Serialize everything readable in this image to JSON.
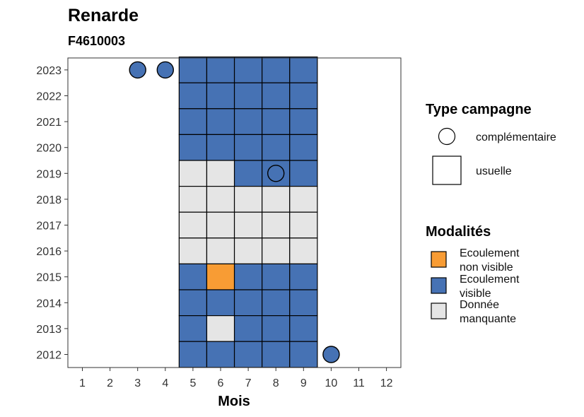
{
  "chart_data": {
    "type": "heatmap",
    "title": "Renarde",
    "subtitle": "F4610003",
    "xlabel": "Mois",
    "x_ticks": [
      "1",
      "2",
      "3",
      "4",
      "5",
      "6",
      "7",
      "8",
      "9",
      "10",
      "11",
      "12"
    ],
    "y_ticks": [
      "2012",
      "2013",
      "2014",
      "2015",
      "2016",
      "2017",
      "2018",
      "2019",
      "2020",
      "2021",
      "2022",
      "2023"
    ],
    "colors": {
      "Ecoulement non visible": "#F89C34",
      "Ecoulement visible": "#4672B4",
      "Donnée manquante": "#E5E5E5",
      "tile_border": "#000000",
      "panel_border": "#333333"
    },
    "usuelle_tiles": [
      {
        "year": 2023,
        "months": [
          "Ecoulement visible",
          "Ecoulement visible",
          "Ecoulement visible",
          "Ecoulement visible",
          "Ecoulement visible"
        ]
      },
      {
        "year": 2022,
        "months": [
          "Ecoulement visible",
          "Ecoulement visible",
          "Ecoulement visible",
          "Ecoulement visible",
          "Ecoulement visible"
        ]
      },
      {
        "year": 2021,
        "months": [
          "Ecoulement visible",
          "Ecoulement visible",
          "Ecoulement visible",
          "Ecoulement visible",
          "Ecoulement visible"
        ]
      },
      {
        "year": 2020,
        "months": [
          "Ecoulement visible",
          "Ecoulement visible",
          "Ecoulement visible",
          "Ecoulement visible",
          "Ecoulement visible"
        ]
      },
      {
        "year": 2019,
        "months": [
          "Donnée manquante",
          "Donnée manquante",
          "Ecoulement visible",
          "Ecoulement visible",
          "Ecoulement visible"
        ]
      },
      {
        "year": 2018,
        "months": [
          "Donnée manquante",
          "Donnée manquante",
          "Donnée manquante",
          "Donnée manquante",
          "Donnée manquante"
        ]
      },
      {
        "year": 2017,
        "months": [
          "Donnée manquante",
          "Donnée manquante",
          "Donnée manquante",
          "Donnée manquante",
          "Donnée manquante"
        ]
      },
      {
        "year": 2016,
        "months": [
          "Donnée manquante",
          "Donnée manquante",
          "Donnée manquante",
          "Donnée manquante",
          "Donnée manquante"
        ]
      },
      {
        "year": 2015,
        "months": [
          "Ecoulement visible",
          "Ecoulement non visible",
          "Ecoulement visible",
          "Ecoulement visible",
          "Ecoulement visible"
        ]
      },
      {
        "year": 2014,
        "months": [
          "Ecoulement visible",
          "Ecoulement visible",
          "Ecoulement visible",
          "Ecoulement visible",
          "Ecoulement visible"
        ]
      },
      {
        "year": 2013,
        "months": [
          "Ecoulement visible",
          "Donnée manquante",
          "Ecoulement visible",
          "Ecoulement visible",
          "Ecoulement visible"
        ]
      },
      {
        "year": 2012,
        "months": [
          "Ecoulement visible",
          "Ecoulement visible",
          "Ecoulement visible",
          "Ecoulement visible",
          "Ecoulement visible"
        ]
      }
    ],
    "usuelle_months": [
      5,
      6,
      7,
      8,
      9
    ],
    "complementaire_points": [
      {
        "year": 2023,
        "month": 3,
        "modalite": "Ecoulement visible"
      },
      {
        "year": 2023,
        "month": 4,
        "modalite": "Ecoulement visible"
      },
      {
        "year": 2019,
        "month": 8,
        "modalite": "Ecoulement visible"
      },
      {
        "year": 2012,
        "month": 10,
        "modalite": "Ecoulement visible"
      }
    ],
    "legend_shape": {
      "title": "Type campagne",
      "items": [
        {
          "shape": "circle",
          "label": "complémentaire"
        },
        {
          "shape": "square",
          "label": "usuelle"
        }
      ]
    },
    "legend_fill": {
      "title": "Modalités",
      "items": [
        {
          "key": "Ecoulement non visible",
          "label_line1": "Ecoulement",
          "label_line2": "non visible"
        },
        {
          "key": "Ecoulement visible",
          "label_line1": "Ecoulement",
          "label_line2": "visible"
        },
        {
          "key": "Donnée manquante",
          "label_line1": "Donnée",
          "label_line2": "manquante"
        }
      ]
    },
    "legend_position": "right",
    "grid": false
  }
}
